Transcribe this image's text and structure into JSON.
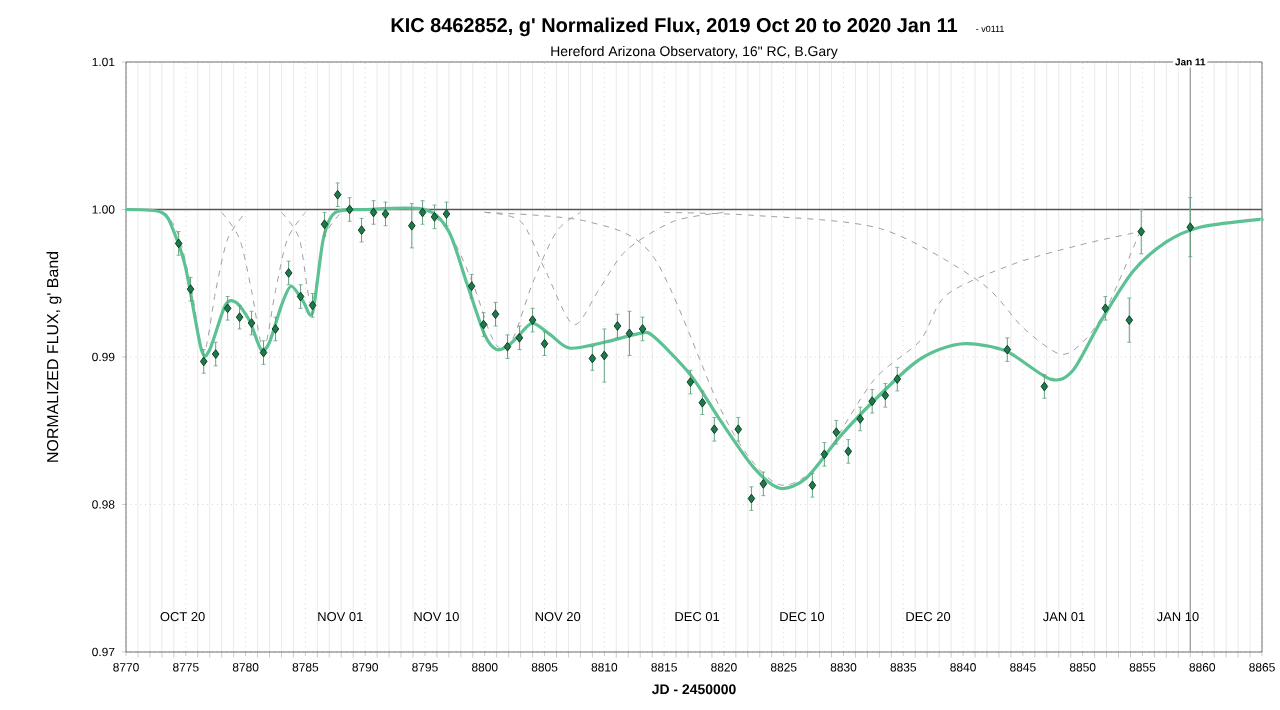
{
  "chart_data": {
    "type": "scatter",
    "title": "KIC 8462852, g' Normalized Flux, 2019 Oct 20 to 2020 Jan 11",
    "subtitle": "Hereford Arizona Observatory, 16\" RC, B.Gary",
    "xlabel": "JD - 2450000",
    "ylabel": "NORMALIZED FLUX, g' Band",
    "xlim": [
      8770,
      8865
    ],
    "ylim": [
      0.97,
      1.01
    ],
    "xticks": [
      8770,
      8775,
      8780,
      8785,
      8790,
      8795,
      8800,
      8805,
      8810,
      8815,
      8820,
      8825,
      8830,
      8835,
      8840,
      8845,
      8850,
      8855,
      8860,
      8865
    ],
    "yticks": [
      0.97,
      0.98,
      0.99,
      {
        "value": 1.0,
        "label": "1.00"
      },
      1.01
    ],
    "grid": true,
    "ref_lines": [
      {
        "axis": "y",
        "value": 1.0,
        "color": "#555555"
      },
      {
        "axis": "x",
        "value": 8859.0,
        "label": "Jan 11",
        "color": "#999999"
      }
    ],
    "annotations": [
      "- v0111",
      "OCT 20",
      "NOV 01",
      "NOV 10",
      "NOV 20",
      "DEC 01",
      "DEC 10",
      "DEC 20",
      "JAN 01",
      "JAN 10"
    ],
    "series": [
      {
        "type": "line",
        "line_style": "dashed",
        "color": "#a0a0a0",
        "x": [
          8772,
          8773.5,
          8774.5,
          8775.5,
          8776.5,
          8777.5,
          8778.5,
          8780
        ],
        "values": [
          1.0,
          0.9995,
          0.998,
          0.9945,
          0.9903,
          0.9945,
          0.998,
          0.9998
        ]
      },
      {
        "type": "line",
        "line_style": "dashed",
        "color": "#a0a0a0",
        "x": [
          8778,
          8779.5,
          8780.5,
          8781.5,
          8782.5,
          8783.5,
          8785
        ],
        "values": [
          0.9998,
          0.998,
          0.9945,
          0.9905,
          0.9945,
          0.998,
          0.9998
        ]
      },
      {
        "type": "line",
        "line_style": "dashed",
        "color": "#a0a0a0",
        "x": [
          8783,
          8784.5,
          8785.5,
          8786.5,
          8788
        ],
        "values": [
          0.9998,
          0.998,
          0.9935,
          0.998,
          0.9998
        ]
      },
      {
        "type": "line",
        "line_style": "dashed",
        "color": "#a0a0a0",
        "x": [
          8795,
          8797,
          8799,
          8800.5,
          8801.5,
          8802.5,
          8804,
          8806,
          8808
        ],
        "values": [
          1.0,
          0.9985,
          0.995,
          0.9915,
          0.9905,
          0.9915,
          0.995,
          0.9985,
          0.9998
        ]
      },
      {
        "type": "line",
        "line_style": "dashed",
        "color": "#a0a0a0",
        "x": [
          8800,
          8803,
          8805,
          8807.4,
          8809.5,
          8811.8,
          8815.8,
          8820
        ],
        "values": [
          0.9998,
          0.9992,
          0.996,
          0.9922,
          0.9945,
          0.9972,
          0.9992,
          0.9998
        ]
      },
      {
        "type": "line",
        "line_style": "dashed",
        "color": "#a0a0a0",
        "x": [
          8800,
          8808.5,
          8814.1,
          8819.7,
          8822.5,
          8825,
          8828,
          8832.5,
          8836.4,
          8838.6,
          8844.2,
          8849.8,
          8854.8
        ],
        "values": [
          0.9998,
          0.9992,
          0.9968,
          0.9865,
          0.9828,
          0.9813,
          0.9828,
          0.9884,
          0.9911,
          0.9942,
          0.9963,
          0.9976,
          0.9985
        ]
      },
      {
        "type": "line",
        "line_style": "dashed",
        "color": "#a0a0a0",
        "x": [
          8815,
          8822.5,
          8833.1,
          8841.4,
          8845,
          8848.1,
          8850,
          8852,
          8854.8
        ],
        "values": [
          0.9998,
          0.9996,
          0.9987,
          0.9951,
          0.992,
          0.9902,
          0.991,
          0.9933,
          0.9985
        ]
      },
      {
        "type": "line",
        "line_style": "solid",
        "color": "#5cc193",
        "x": [
          8770,
          8773,
          8774,
          8775,
          8776.3,
          8777,
          8778.3,
          8779.2,
          8780.3,
          8781.3,
          8782,
          8783,
          8783.8,
          8784.8,
          8785.6,
          8786.5,
          8787.5,
          8790,
          8795,
          8797,
          8798.5,
          8800,
          8801,
          8802,
          8802.9,
          8804,
          8805.5,
          8807.1,
          8810,
          8813,
          8814.1,
          8817.2,
          8819.7,
          8822.5,
          8824.7,
          8826.9,
          8829.7,
          8832.5,
          8835.8,
          8838,
          8840.3,
          8843.6,
          8847.3,
          8849.2,
          8851.5,
          8854.2,
          8857,
          8859.8,
          8864.4,
          8865
        ],
        "values": [
          1.0,
          0.9998,
          0.9985,
          0.996,
          0.9905,
          0.9905,
          0.9935,
          0.9937,
          0.9925,
          0.9905,
          0.991,
          0.9935,
          0.9948,
          0.9938,
          0.993,
          0.998,
          0.9998,
          1.0,
          1.0,
          0.9985,
          0.995,
          0.9915,
          0.9905,
          0.9908,
          0.9915,
          0.9923,
          0.9915,
          0.9906,
          0.991,
          0.9916,
          0.9914,
          0.9888,
          0.9857,
          0.9825,
          0.9811,
          0.9818,
          0.9846,
          0.987,
          0.9895,
          0.9905,
          0.9909,
          0.9904,
          0.9885,
          0.9891,
          0.9924,
          0.9958,
          0.9978,
          0.9988,
          0.9993,
          0.9993
        ]
      },
      {
        "marker": "diamond",
        "color": "#1f7a4a",
        "x": [
          8774.4,
          8775.4,
          8776.5,
          8777.5,
          8778.5,
          8779.5,
          8780.5,
          8781.5,
          8782.5,
          8783.6,
          8784.6,
          8785.6,
          8786.6,
          8787.7,
          8788.7,
          8789.7,
          8790.7,
          8791.7,
          8793.9,
          8794.8,
          8795.8,
          8796.8,
          8798.9,
          8799.9,
          8800.9,
          8801.9,
          8802.9,
          8804.0,
          8805.0,
          8809.0,
          8810.0,
          8811.1,
          8812.1,
          8813.2,
          8817.2,
          8818.2,
          8819.2,
          8821.2,
          8822.3,
          8823.3,
          8827.4,
          8828.4,
          8829.4,
          8830.4,
          8831.4,
          8832.4,
          8833.5,
          8834.5,
          8843.7,
          8846.8,
          8851.9,
          8853.9,
          8854.9,
          8859.0
        ],
        "values": [
          0.9977,
          0.9946,
          0.9897,
          0.9902,
          0.9933,
          0.9927,
          0.9923,
          0.9903,
          0.9919,
          0.9957,
          0.9941,
          0.9935,
          0.999,
          1.001,
          1.0,
          0.9986,
          0.9998,
          0.9997,
          0.9989,
          0.9998,
          0.9995,
          0.9997,
          0.9948,
          0.9922,
          0.9929,
          0.9907,
          0.9913,
          0.9925,
          0.9909,
          0.9899,
          0.9901,
          0.9921,
          0.9916,
          0.9919,
          0.9883,
          0.9869,
          0.9851,
          0.9851,
          0.9804,
          0.9814,
          0.9813,
          0.9834,
          0.9849,
          0.9836,
          0.9858,
          0.987,
          0.9874,
          0.9885,
          0.9905,
          0.988,
          0.9933,
          0.9925,
          0.9985,
          0.9988
        ],
        "errors": [
          0.0008,
          0.0008,
          0.0008,
          0.0008,
          0.0008,
          0.0008,
          0.0008,
          0.0008,
          0.0008,
          0.0008,
          0.0008,
          0.0008,
          0.0008,
          0.0008,
          0.0008,
          0.0008,
          0.0008,
          0.0008,
          0.0015,
          0.0008,
          0.0008,
          0.0008,
          0.0008,
          0.0008,
          0.0008,
          0.0008,
          0.0008,
          0.0008,
          0.0008,
          0.0008,
          0.0018,
          0.0008,
          0.0015,
          0.0008,
          0.0008,
          0.0008,
          0.0008,
          0.0008,
          0.0008,
          0.0008,
          0.0008,
          0.0008,
          0.0008,
          0.0008,
          0.0008,
          0.0008,
          0.0008,
          0.0008,
          0.0008,
          0.0008,
          0.0008,
          0.0015,
          0.0015,
          0.002
        ]
      }
    ]
  }
}
